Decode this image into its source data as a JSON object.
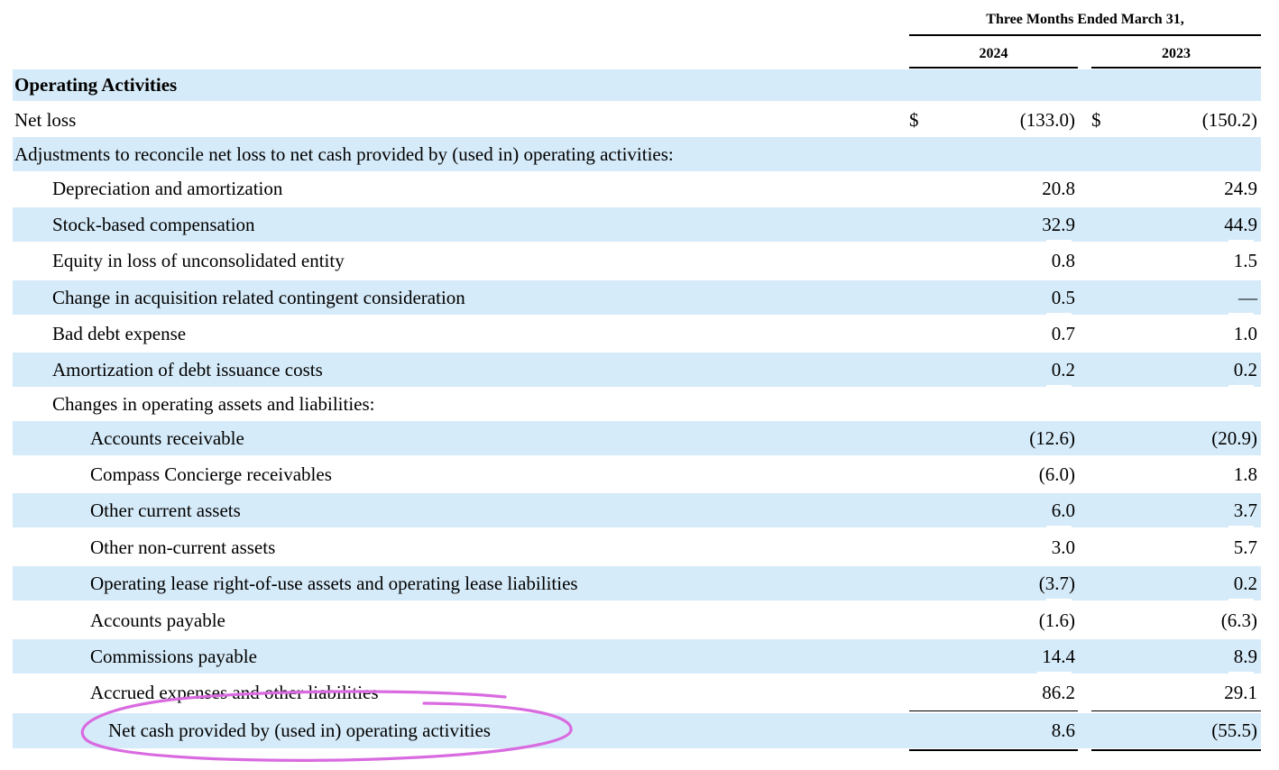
{
  "header": {
    "period": "Three Months Ended March 31,",
    "years": [
      "2024",
      "2023"
    ]
  },
  "section_title": "Operating Activities",
  "currency_symbol": "$",
  "rows": [
    {
      "label": "Net loss",
      "v2024": "(133.0)",
      "v2023": "(150.2)",
      "currency": true
    },
    {
      "label": "Adjustments to reconcile net loss to net cash provided by (used in) operating activities:",
      "v2024": "",
      "v2023": ""
    },
    {
      "label": "Depreciation and amortization",
      "v2024": "20.8",
      "v2023": "24.9"
    },
    {
      "label": "Stock-based compensation",
      "v2024": "32.9",
      "v2023": "44.9"
    },
    {
      "label": "Equity in loss of unconsolidated entity",
      "v2024": "0.8",
      "v2023": "1.5"
    },
    {
      "label": "Change in acquisition related contingent consideration",
      "v2024": "0.5",
      "v2023": "—"
    },
    {
      "label": "Bad debt expense",
      "v2024": "0.7",
      "v2023": "1.0"
    },
    {
      "label": "Amortization of debt issuance costs",
      "v2024": "0.2",
      "v2023": "0.2"
    },
    {
      "label": "Changes in operating assets and liabilities:",
      "v2024": "",
      "v2023": ""
    },
    {
      "label": "Accounts receivable",
      "v2024": "(12.6)",
      "v2023": "(20.9)"
    },
    {
      "label": "Compass Concierge receivables",
      "v2024": "(6.0)",
      "v2023": "1.8"
    },
    {
      "label": "Other current assets",
      "v2024": "6.0",
      "v2023": "3.7"
    },
    {
      "label": "Other non-current assets",
      "v2024": "3.0",
      "v2023": "5.7"
    },
    {
      "label": "Operating lease right-of-use assets and operating lease liabilities",
      "v2024": "(3.7)",
      "v2023": "0.2"
    },
    {
      "label": "Accounts payable",
      "v2024": "(1.6)",
      "v2023": "(6.3)"
    },
    {
      "label": "Commissions payable",
      "v2024": "14.4",
      "v2023": "8.9"
    },
    {
      "label": "Accrued expenses and other liabilities",
      "v2024": "86.2",
      "v2023": "29.1"
    },
    {
      "label": "Net cash provided by (used in) operating activities",
      "v2024": "8.6",
      "v2023": "(55.5)"
    }
  ],
  "annotation": {
    "color": "#d96be0"
  }
}
